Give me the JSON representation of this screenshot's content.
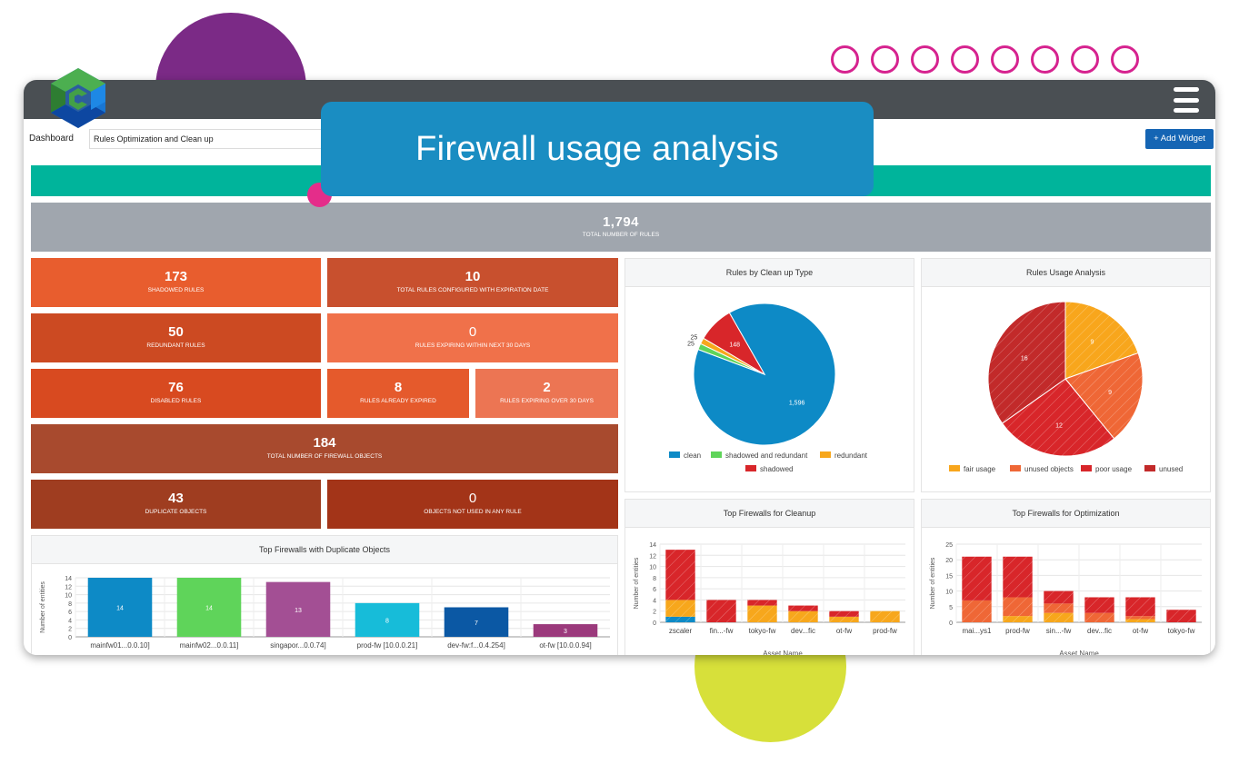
{
  "header": {
    "dashboard_label": "Dashboard",
    "dashboard_value": "Rules Optimization and Clean up",
    "add_widget": "+ Add Widget"
  },
  "callout": "Firewall usage analysis",
  "total_rules": {
    "value": "1,794",
    "label": "TOTAL NUMBER OF RULES"
  },
  "tiles": {
    "shadowed": {
      "value": "173",
      "label": "SHADOWED RULES"
    },
    "expiration": {
      "value": "10",
      "label": "TOTAL RULES CONFIGURED WITH EXPIRATION DATE"
    },
    "redundant": {
      "value": "50",
      "label": "REDUNDANT RULES"
    },
    "expiring30": {
      "value": "0",
      "label": "RULES EXPIRING WITHIN NEXT 30 DAYS"
    },
    "disabled": {
      "value": "76",
      "label": "DISABLED RULES"
    },
    "expired": {
      "value": "8",
      "label": "RULES ALREADY EXPIRED"
    },
    "expiringover": {
      "value": "2",
      "label": "RULES EXPIRING OVER 30 DAYS"
    },
    "objects": {
      "value": "184",
      "label": "TOTAL NUMBER OF FIREWALL OBJECTS"
    },
    "duplicate": {
      "value": "43",
      "label": "DUPLICATE OBJECTS"
    },
    "unused": {
      "value": "0",
      "label": "OBJECTS NOT USED IN ANY RULE"
    }
  },
  "colors": {
    "topbar": "#4a4f53",
    "accent_green": "#00b49b",
    "callout_blue": "#1a8dc2",
    "tile_orange": "#e85d2e",
    "tile_dark": "#a33418"
  },
  "chart_data": [
    {
      "id": "clean_up",
      "type": "pie",
      "title": "Rules by Clean up Type",
      "labels": [
        "clean",
        "shadowed and redundant",
        "redundant",
        "shadowed"
      ],
      "values": [
        1596,
        25,
        25,
        148
      ],
      "slice_labels": [
        "1,596",
        "25",
        "25",
        "148"
      ],
      "colors": [
        "#0d8ac6",
        "#5fd45a",
        "#f7a71c",
        "#d8262a"
      ],
      "legend": "bottom"
    },
    {
      "id": "usage",
      "type": "pie",
      "title": "Rules Usage Analysis",
      "labels": [
        "fair usage",
        "unused objects",
        "poor usage",
        "unused"
      ],
      "values": [
        9,
        9,
        12,
        16
      ],
      "colors": [
        "#f8a61c",
        "#ef6736",
        "#d8262a",
        "#c22a2a"
      ],
      "legend": "bottom"
    },
    {
      "id": "duplicates",
      "type": "bar",
      "title": "Top Firewalls with Duplicate Objects",
      "ylabel": "Number of entities",
      "ylim": [
        0,
        14
      ],
      "yticks": [
        0,
        2,
        4,
        6,
        8,
        10,
        12,
        14
      ],
      "categories": [
        "mainfw01...0.0.10]",
        "mainfw02...0.0.11]",
        "singapor...0.0.74]",
        "prod-fw [10.0.0.21]",
        "dev-fw:f...0.4.254]",
        "ot-fw [10.0.0.94]"
      ],
      "values": [
        14,
        14,
        13,
        8,
        7,
        3
      ],
      "colors": [
        "#0d8ac6",
        "#5fd45a",
        "#a34f94",
        "#17bcd9",
        "#0b58a4",
        "#9b3a7c"
      ]
    },
    {
      "id": "cleanup_fw",
      "type": "bar",
      "stacked": true,
      "title": "Top Firewalls for Cleanup",
      "xlabel": "Asset Name",
      "ylabel": "Number of entities",
      "ylim": [
        0,
        14
      ],
      "yticks": [
        0,
        2,
        4,
        6,
        8,
        10,
        12,
        14
      ],
      "categories": [
        "zscaler",
        "fin...-fw",
        "tokyo-fw",
        "dev...fic",
        "ot-fw",
        "prod-fw"
      ],
      "series": [
        {
          "values": [
            1,
            0,
            0,
            0,
            0,
            0
          ],
          "color": "#0d8ac6"
        },
        {
          "values": [
            3,
            0,
            3,
            2,
            1,
            2
          ],
          "color": "#f7a71c"
        },
        {
          "values": [
            9,
            4,
            1,
            1,
            1,
            0
          ],
          "color": "#d8262a"
        }
      ]
    },
    {
      "id": "optim_fw",
      "type": "bar",
      "stacked": true,
      "title": "Top Firewalls for Optimization",
      "xlabel": "Asset Name",
      "ylabel": "Number of entities",
      "ylim": [
        0,
        25
      ],
      "yticks": [
        0,
        5,
        10,
        15,
        20,
        25
      ],
      "categories": [
        "mai...ys1",
        "prod-fw",
        "sin...-fw",
        "dev...fic",
        "ot-fw",
        "tokyo-fw"
      ],
      "series": [
        {
          "values": [
            0,
            2,
            3,
            0,
            1,
            0
          ],
          "color": "#f7a71c"
        },
        {
          "values": [
            7,
            6,
            3,
            3,
            1,
            0
          ],
          "color": "#ef6736"
        },
        {
          "values": [
            14,
            13,
            4,
            5,
            6,
            4
          ],
          "color": "#d8262a"
        }
      ]
    }
  ]
}
